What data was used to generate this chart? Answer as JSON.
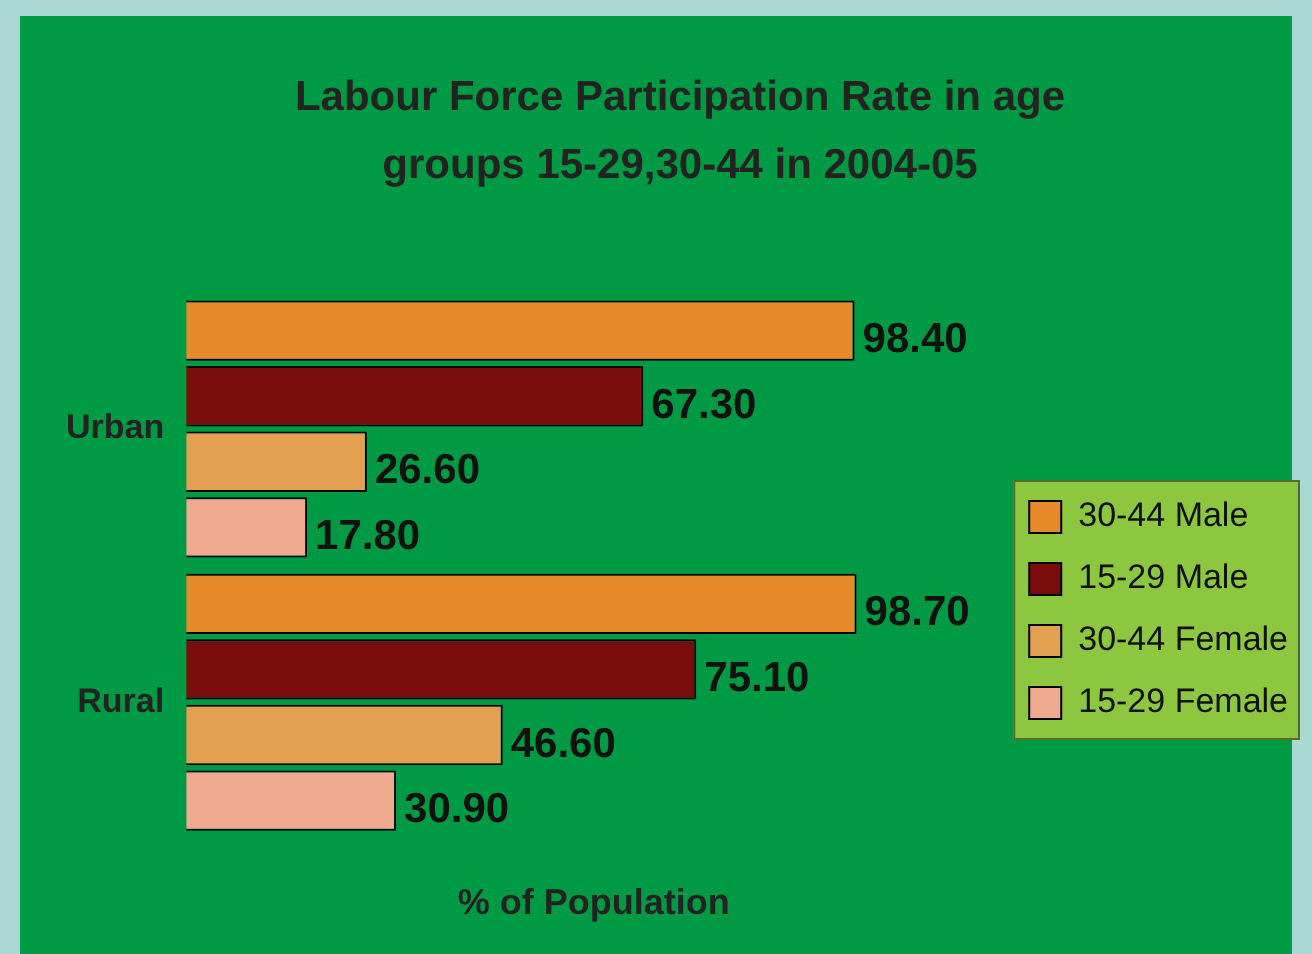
{
  "chart_data": {
    "type": "bar",
    "orientation": "horizontal",
    "title": "Labour Force Participation Rate in age groups 15-29,30-44 in 2004-05",
    "xlabel": "% of Population",
    "categories": [
      "Urban",
      "Rural"
    ],
    "series": [
      {
        "name": "30-44 Male",
        "color": "#e8892a",
        "values": [
          98.4,
          98.7
        ],
        "value_labels": [
          "98.40",
          "98.70"
        ]
      },
      {
        "name": "15-29 Male",
        "color": "#7a0c0c",
        "values": [
          67.3,
          75.1
        ],
        "value_labels": [
          "67.30",
          "75.10"
        ]
      },
      {
        "name": "30-44 Female",
        "color": "#e2a050",
        "values": [
          26.6,
          46.6
        ],
        "value_labels": [
          "26.60",
          "46.60"
        ]
      },
      {
        "name": "15-29 Female",
        "color": "#f0aa90",
        "values": [
          17.8,
          30.9
        ],
        "value_labels": [
          "17.80",
          "30.90"
        ]
      }
    ],
    "tick_labels": "y",
    "grid": false,
    "legend": "right"
  }
}
